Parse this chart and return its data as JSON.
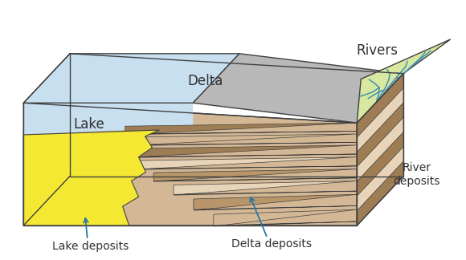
{
  "bg": "#ffffff",
  "labels": {
    "lake": "Lake",
    "delta": "Delta",
    "rivers": "Rivers",
    "river_deposits": "River\ndeposits",
    "lake_deposits": "Lake deposits",
    "delta_deposits": "Delta deposits"
  },
  "colors": {
    "lake_water": "#c8dff0",
    "lake_yellow": "#f5e832",
    "delta_gray": "#b8b8b8",
    "delta_brown_dark": "#9e7d55",
    "delta_brown_mid": "#b8966a",
    "delta_brown_light": "#d4b896",
    "delta_pale": "#e8d4b8",
    "river_top": "#d8e8a0",
    "river_side": "#8fa844",
    "river_line": "#3a8ab0",
    "outline": "#404040",
    "arrow": "#2878a0",
    "text": "#303030"
  }
}
